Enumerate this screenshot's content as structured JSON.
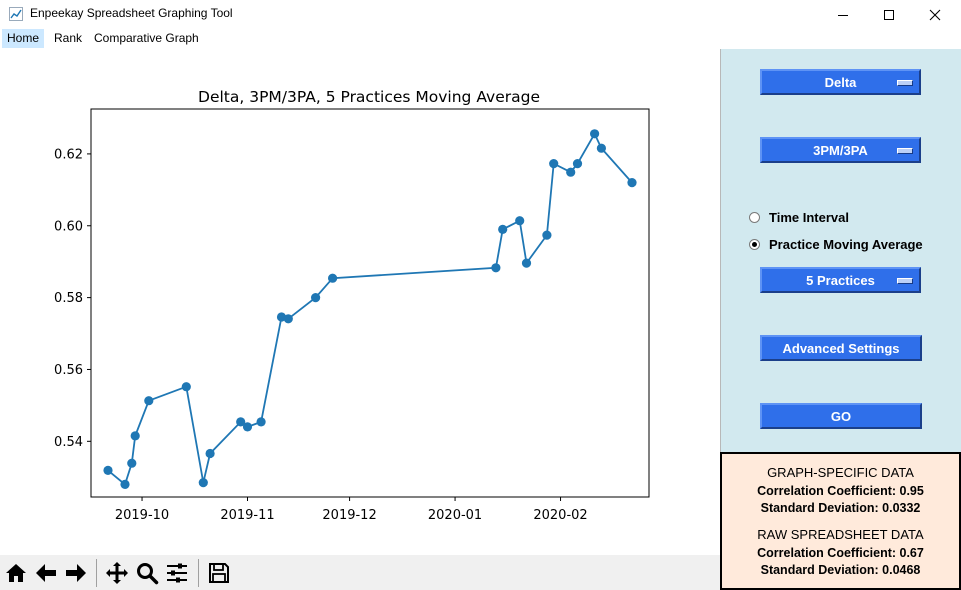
{
  "window": {
    "title": "Enpeekay Spreadsheet Graphing Tool",
    "controls": [
      "minimize",
      "maximize",
      "close"
    ]
  },
  "menu": {
    "items": [
      {
        "label": "Home",
        "active": true
      },
      {
        "label": "Rank",
        "active": false
      },
      {
        "label": "Comparative Graph",
        "active": false
      }
    ]
  },
  "chart_data": {
    "type": "line",
    "title": "Delta, 3PM/3PA, 5 Practices Moving Average",
    "xlabel": "",
    "ylabel": "",
    "x_ticks": [
      "2019-10",
      "2019-11",
      "2019-12",
      "2020-01",
      "2020-02"
    ],
    "y_ticks": [
      "0.54",
      "0.56",
      "0.58",
      "0.60",
      "0.62"
    ],
    "ylim": [
      0.5245,
      0.6325
    ],
    "xlim": [
      "2019-09-16",
      "2020-02-27"
    ],
    "grid": false,
    "marker": "circle",
    "color": "#1f77b4",
    "series": [
      {
        "points": [
          {
            "x": "2019-09-21",
            "y": 0.5319
          },
          {
            "x": "2019-09-26",
            "y": 0.528
          },
          {
            "x": "2019-09-28",
            "y": 0.5339
          },
          {
            "x": "2019-09-29",
            "y": 0.5415
          },
          {
            "x": "2019-10-03",
            "y": 0.5513
          },
          {
            "x": "2019-10-14",
            "y": 0.5552
          },
          {
            "x": "2019-10-19",
            "y": 0.5285
          },
          {
            "x": "2019-10-21",
            "y": 0.5366
          },
          {
            "x": "2019-10-30",
            "y": 0.5454
          },
          {
            "x": "2019-11-01",
            "y": 0.544
          },
          {
            "x": "2019-11-05",
            "y": 0.5454
          },
          {
            "x": "2019-11-11",
            "y": 0.5746
          },
          {
            "x": "2019-11-13",
            "y": 0.5741
          },
          {
            "x": "2019-11-21",
            "y": 0.58
          },
          {
            "x": "2019-11-26",
            "y": 0.5854
          },
          {
            "x": "2020-01-13",
            "y": 0.5883
          },
          {
            "x": "2020-01-15",
            "y": 0.599
          },
          {
            "x": "2020-01-20",
            "y": 0.6014
          },
          {
            "x": "2020-01-22",
            "y": 0.5896
          },
          {
            "x": "2020-01-28",
            "y": 0.5974
          },
          {
            "x": "2020-01-30",
            "y": 0.6173
          },
          {
            "x": "2020-02-04",
            "y": 0.6149
          },
          {
            "x": "2020-02-06",
            "y": 0.6173
          },
          {
            "x": "2020-02-11",
            "y": 0.6256
          },
          {
            "x": "2020-02-13",
            "y": 0.6216
          },
          {
            "x": "2020-02-22",
            "y": 0.612
          }
        ]
      }
    ]
  },
  "side": {
    "team_select": "Delta",
    "stat_select": "3PM/3PA",
    "radio_time_interval": "Time Interval",
    "radio_practice_ma": "Practice Moving Average",
    "selected_mode": "Practice Moving Average",
    "practices_select": "5 Practices",
    "advanced_label": "Advanced Settings",
    "go_label": "GO",
    "button_color": "#2f6fea",
    "panel_color": "#d2e9ef"
  },
  "info": {
    "graph_heading": "GRAPH-SPECIFIC DATA",
    "graph_corr": "Correlation Coefficient: 0.95",
    "graph_std": "Standard Deviation: 0.0332",
    "raw_heading": "RAW SPREADSHEET DATA",
    "raw_corr": "Correlation Coefficient: 0.67",
    "raw_std": "Standard Deviation: 0.0468",
    "box_color": "#ffeadb"
  },
  "toolbar": {
    "buttons": [
      "home-icon",
      "back-arrow-icon",
      "forward-arrow-icon",
      "pan-icon",
      "zoom-icon",
      "configure-subplots-icon",
      "save-icon"
    ]
  }
}
